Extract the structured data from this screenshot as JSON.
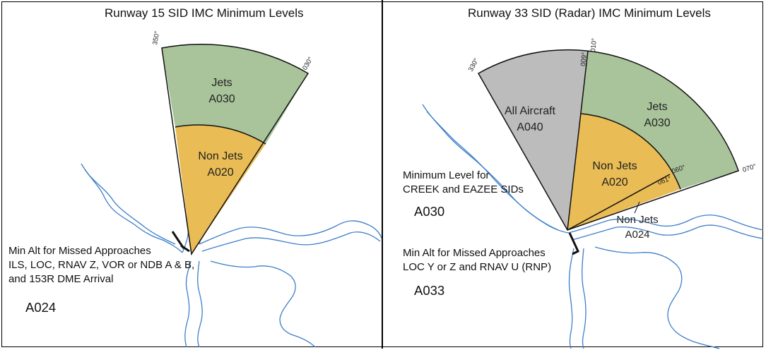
{
  "left_panel": {
    "title": "Runway 15  SID  IMC Minimum Levels",
    "zones": [
      {
        "label": "Jets",
        "level": "A030",
        "color": "#a9c49b"
      },
      {
        "label": "Non Jets",
        "level": "A020",
        "color": "#e9bc55"
      }
    ],
    "bearings": [
      "350°",
      "030°"
    ],
    "note": {
      "lines": [
        "Min Alt for Missed Approaches",
        "ILS, LOC, RNAV Z, VOR or NDB A & B,",
        "and 153R DME Arrival"
      ],
      "level": "A024"
    }
  },
  "right_panel": {
    "title": "Runway 33 SID (Radar) IMC Minimum Levels",
    "zones": [
      {
        "label": "All Aircraft",
        "level": "A040",
        "color": "#bcbcbd"
      },
      {
        "label": "Jets",
        "level": "A030",
        "color": "#a9c49b"
      },
      {
        "label": "Non Jets",
        "level": "A020",
        "color": "#e9bc55"
      },
      {
        "label": "Non Jets",
        "level": "A024",
        "color": "#ffffff"
      }
    ],
    "bearings": [
      "330°",
      "009°",
      "010°",
      "060°",
      "061°",
      "070°"
    ],
    "note_sid": {
      "lines": [
        "Minimum Level for",
        "CREEK and EAZEE SIDs"
      ],
      "level": "A030"
    },
    "note_missed": {
      "lines": [
        "Min Alt for Missed Approaches",
        "LOC Y or Z and RNAV U (RNP)"
      ],
      "level": "A033"
    }
  },
  "colors": {
    "coastline": "#3d7fc9",
    "runway": "#111111"
  }
}
